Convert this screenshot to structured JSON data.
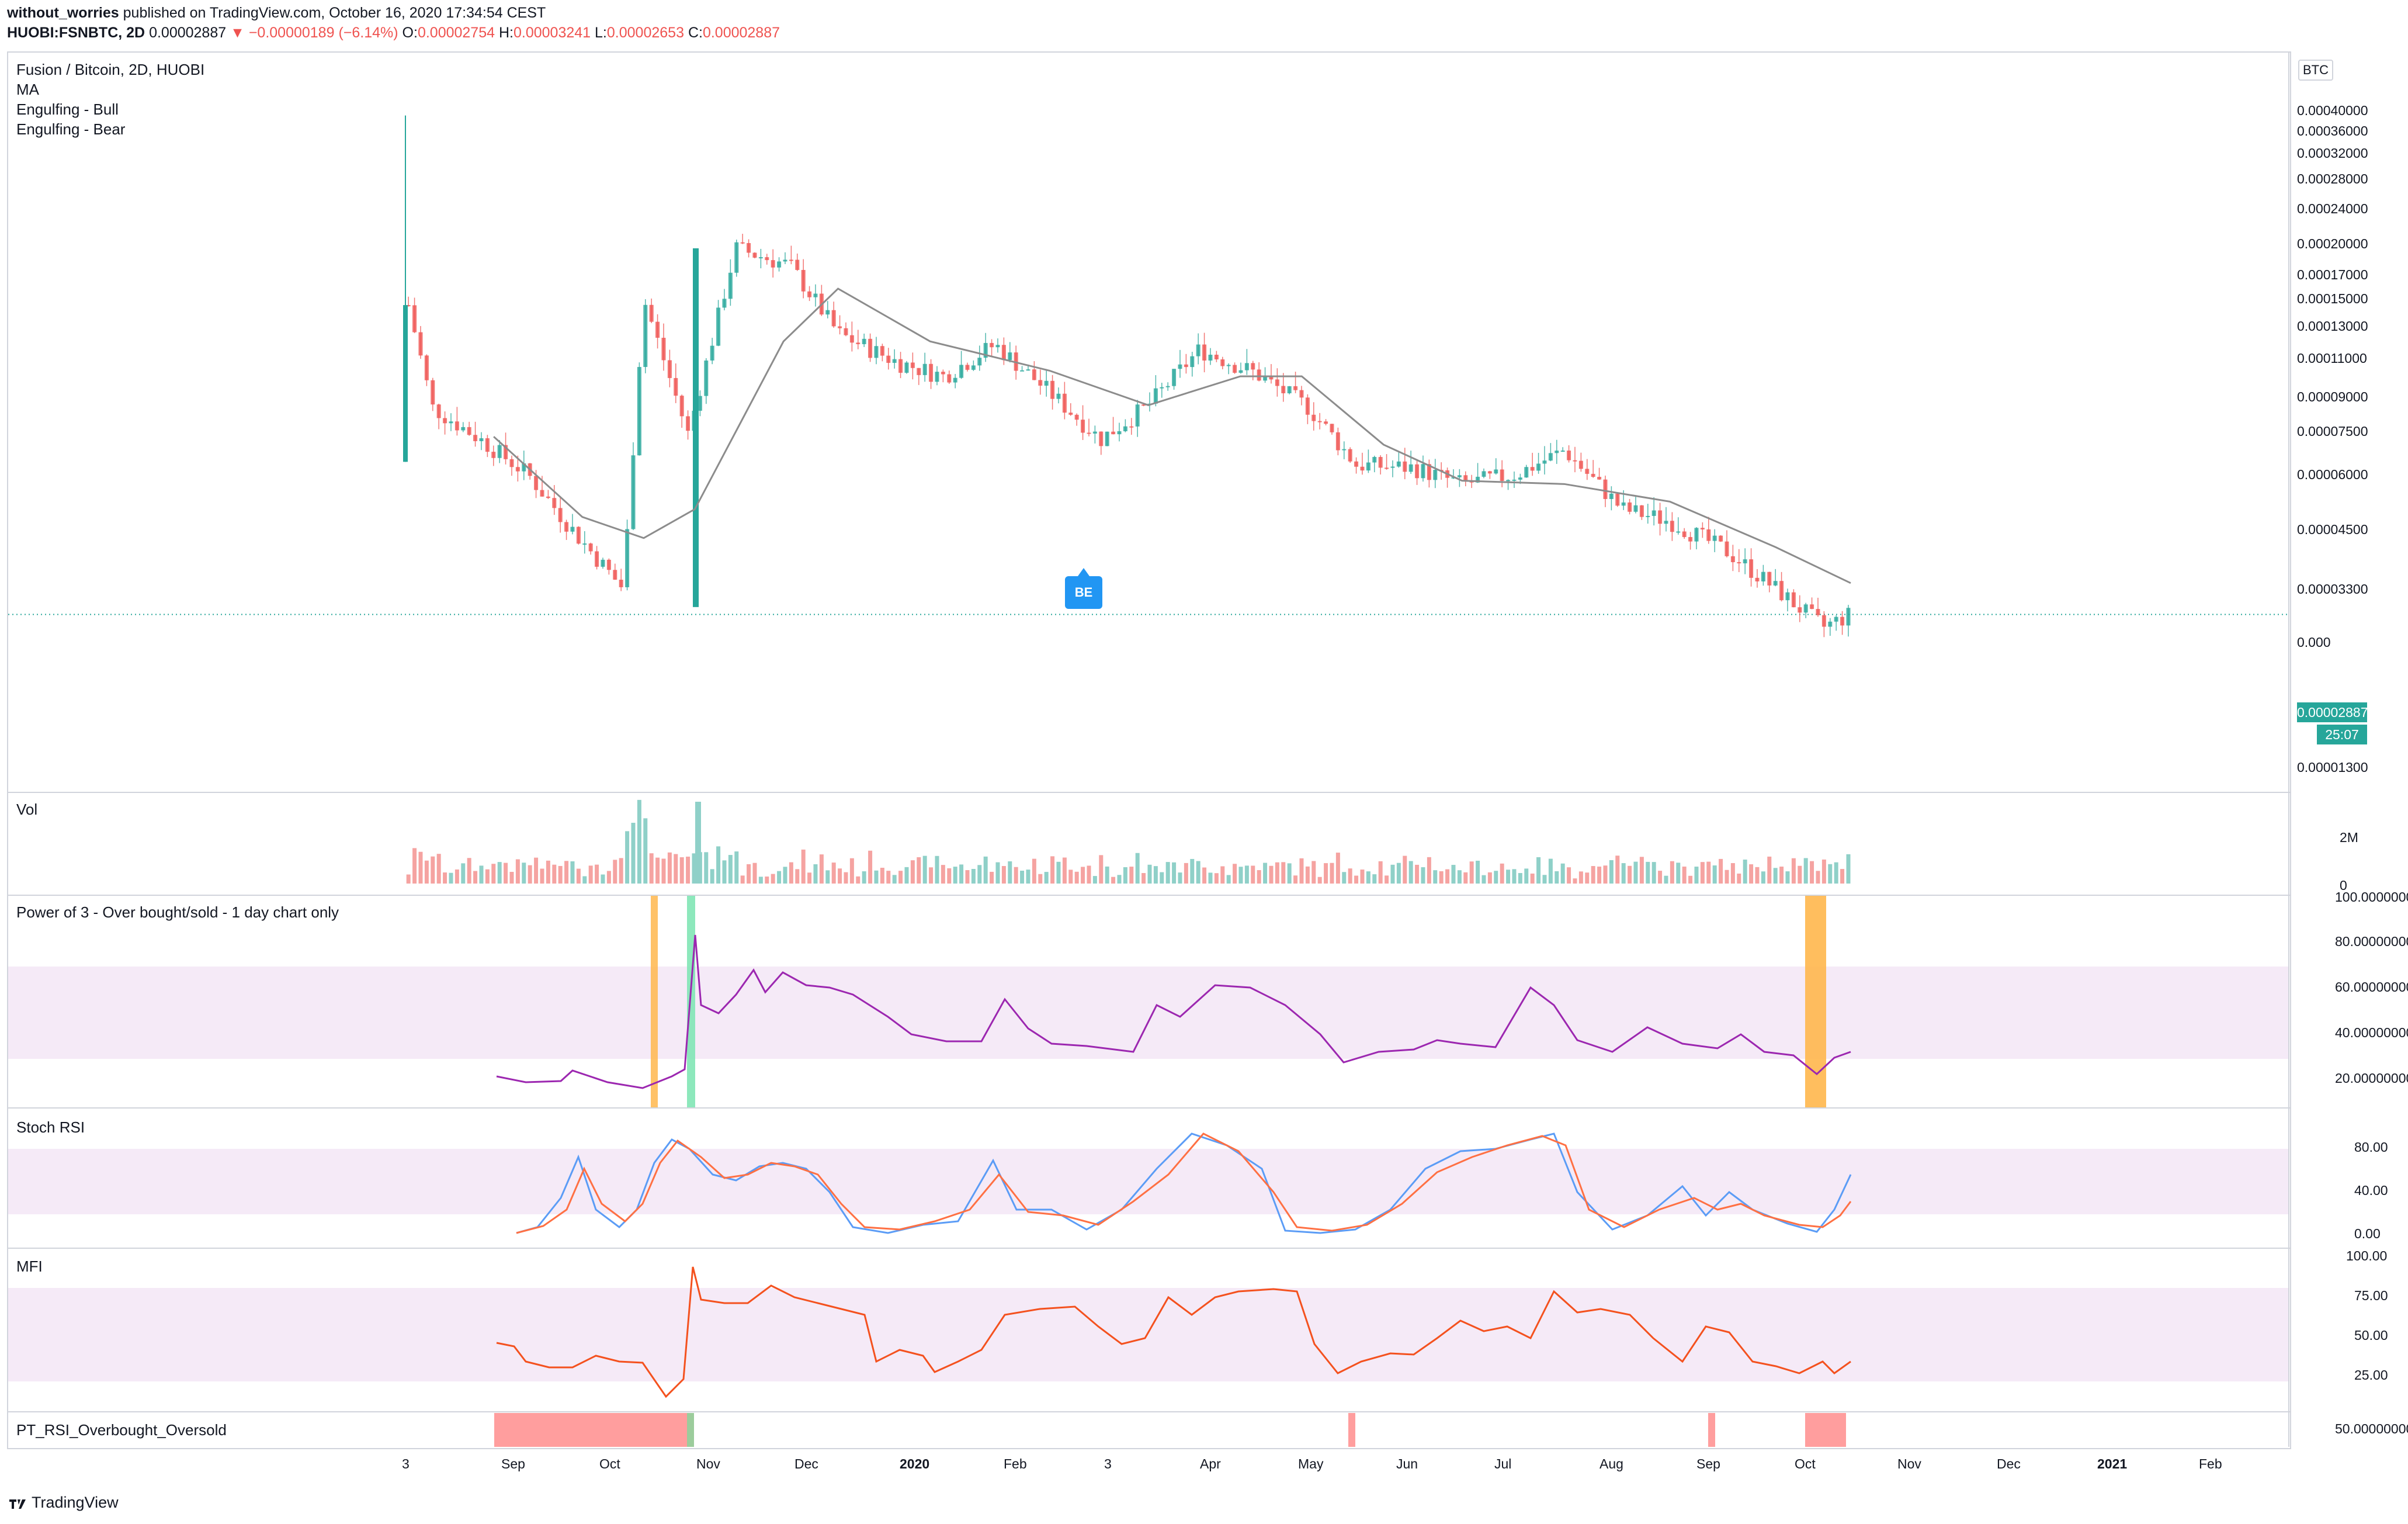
{
  "header": {
    "author": "without_worries",
    "published": "published on TradingView.com, October 16, 2020 17:34:54 CEST",
    "symbol": "HUOBI:FSNBTC, 2D",
    "last": "0.00002887",
    "change": "−0.00000189 (−6.14%)",
    "o_label": "O:",
    "o": "0.00002754",
    "h_label": "H:",
    "h": "0.00003241",
    "l_label": "L:",
    "l": "0.00002653",
    "c_label": "C:",
    "c": "0.00002887"
  },
  "main_pane": {
    "title": "Fusion / Bitcoin, 2D, HUOBI",
    "indicators": [
      "MA",
      "Engulfing - Bull",
      "Engulfing - Bear"
    ],
    "currency": "BTC",
    "price_tag": "0.00002887",
    "countdown": "25:07",
    "marker": "BE",
    "price_ticks": [
      "0.00040000",
      "0.00036000",
      "0.00032000",
      "0.00028000",
      "0.00024000",
      "0.00020000",
      "0.00017000",
      "0.00015000",
      "0.00013000",
      "0.00011000",
      "0.00009000",
      "0.00007500",
      "0.00006000",
      "0.00004500",
      "0.00003300",
      "0.000",
      "0.00001300"
    ]
  },
  "vol_pane": {
    "title": "Vol",
    "ticks": [
      "2M",
      "0"
    ]
  },
  "power_pane": {
    "title": "Power of 3 - Over bought/sold - 1 day chart only",
    "ticks": [
      "100.00000000",
      "80.00000000",
      "60.00000000",
      "40.00000000",
      "20.00000000"
    ]
  },
  "stoch_pane": {
    "title": "Stoch RSI",
    "ticks": [
      "80.00",
      "40.00",
      "0.00"
    ]
  },
  "mfi_pane": {
    "title": "MFI",
    "ticks": [
      "100.00",
      "75.00",
      "50.00",
      "25.00"
    ]
  },
  "pt_pane": {
    "title": "PT_RSI_Overbought_Oversold",
    "ticks": [
      "50.00000000"
    ]
  },
  "time_axis": [
    "3",
    "Sep",
    "Oct",
    "Nov",
    "Dec",
    "2020",
    "Feb",
    "3",
    "Apr",
    "May",
    "Jun",
    "Jul",
    "Aug",
    "Sep",
    "Oct",
    "Nov",
    "Dec",
    "2021",
    "Feb"
  ],
  "footer": {
    "brand": "TradingView"
  },
  "chart_data": {
    "type": "candlestick",
    "title": "Fusion / Bitcoin, 2D, HUOBI",
    "x_start": "2019-08-15",
    "x_end": "2020-10-16",
    "series": [
      {
        "name": "FSNBTC close (approx)",
        "points": [
          [
            "2019-08-20",
            0.000145
          ],
          [
            "2019-08-27",
            8.5e-05
          ],
          [
            "2019-09-10",
            7.2e-05
          ],
          [
            "2019-09-24",
            6e-05
          ],
          [
            "2019-10-08",
            4.4e-05
          ],
          [
            "2019-10-22",
            3.3e-05
          ],
          [
            "2019-10-28",
            0.00015
          ],
          [
            "2019-11-10",
            7.4e-05
          ],
          [
            "2019-11-24",
            0.000195
          ],
          [
            "2019-12-10",
            0.000178
          ],
          [
            "2019-12-24",
            0.000125
          ],
          [
            "2020-01-10",
            0.000108
          ],
          [
            "2020-01-24",
            0.0001
          ],
          [
            "2020-02-08",
            0.000118
          ],
          [
            "2020-02-24",
            9.2e-05
          ],
          [
            "2020-03-10",
            7.2e-05
          ],
          [
            "2020-03-24",
            8.6e-05
          ],
          [
            "2020-04-08",
            0.000115
          ],
          [
            "2020-04-24",
            0.000102
          ],
          [
            "2020-05-10",
            8.5e-05
          ],
          [
            "2020-05-24",
            6.3e-05
          ],
          [
            "2020-06-10",
            6.2e-05
          ],
          [
            "2020-06-24",
            5.7e-05
          ],
          [
            "2020-07-10",
            6e-05
          ],
          [
            "2020-07-24",
            6.8e-05
          ],
          [
            "2020-08-10",
            5e-05
          ],
          [
            "2020-08-24",
            4.7e-05
          ],
          [
            "2020-09-10",
            4e-05
          ],
          [
            "2020-09-24",
            3.3e-05
          ],
          [
            "2020-10-08",
            2.7e-05
          ],
          [
            "2020-10-16",
            2.887e-05
          ]
        ]
      },
      {
        "name": "MA (approx)",
        "points": [
          [
            "2019-09-14",
            7.3e-05
          ],
          [
            "2019-10-10",
            4.8e-05
          ],
          [
            "2019-10-28",
            4.3e-05
          ],
          [
            "2019-11-12",
            5e-05
          ],
          [
            "2019-12-08",
            0.00012
          ],
          [
            "2019-12-24",
            0.000158
          ],
          [
            "2020-01-20",
            0.00012
          ],
          [
            "2020-02-24",
            0.000103
          ],
          [
            "2020-03-24",
            8.6e-05
          ],
          [
            "2020-04-20",
            0.0001
          ],
          [
            "2020-05-08",
            0.0001
          ],
          [
            "2020-06-01",
            7e-05
          ],
          [
            "2020-06-24",
            5.8e-05
          ],
          [
            "2020-07-24",
            5.7e-05
          ],
          [
            "2020-08-24",
            5.2e-05
          ],
          [
            "2020-09-24",
            4.1e-05
          ],
          [
            "2020-10-16",
            3.4e-05
          ]
        ]
      }
    ],
    "ylabel": "BTC",
    "scale": "log",
    "ylim": [
      1.25e-05,
      0.00044
    ]
  }
}
